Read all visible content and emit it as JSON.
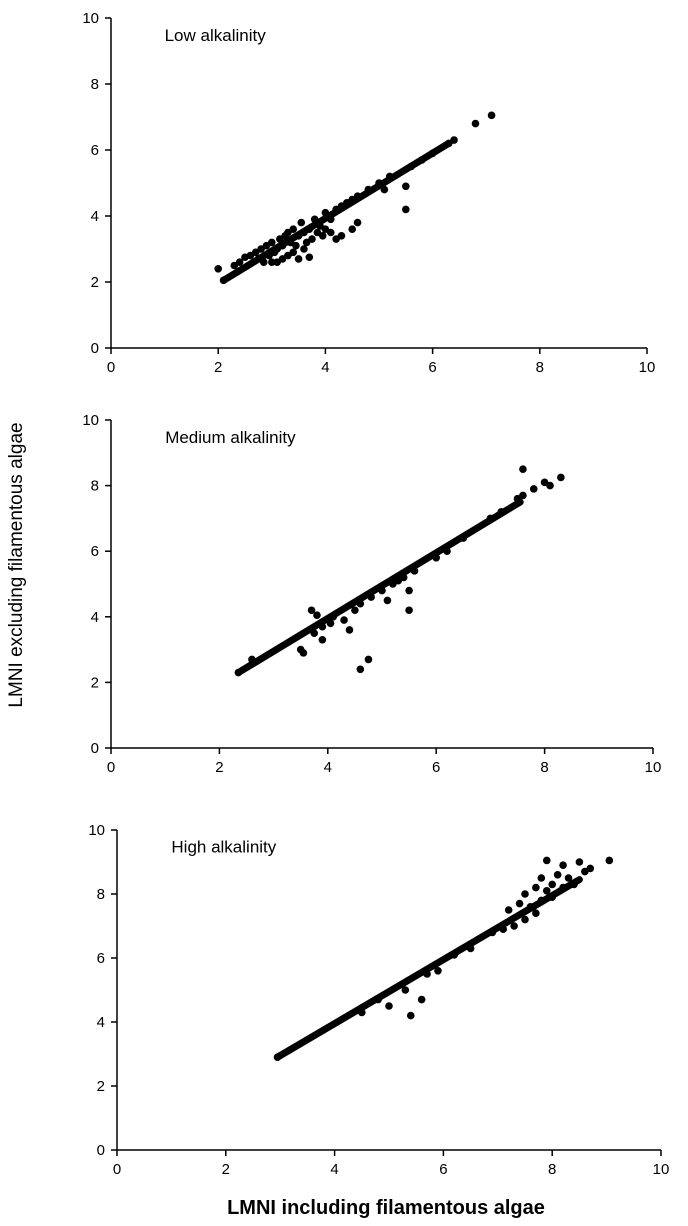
{
  "figure": {
    "xlabel": "LMNI including  filamentous algae",
    "ylabel": "LMNI excluding filamentous algae"
  },
  "chart_data": [
    {
      "type": "scatter",
      "title": "Low alkalinity",
      "xlim": [
        0,
        10
      ],
      "ylim": [
        0,
        10
      ],
      "xticks": [
        0,
        2,
        4,
        6,
        8,
        10
      ],
      "yticks": [
        0,
        2,
        4,
        6,
        8,
        10
      ],
      "grid": false,
      "marker_color": "#000000",
      "line": {
        "from": [
          2.1,
          2.05
        ],
        "to": [
          6.3,
          6.2
        ]
      },
      "points": [
        [
          2.0,
          2.4
        ],
        [
          2.1,
          2.05
        ],
        [
          2.3,
          2.5
        ],
        [
          2.4,
          2.6
        ],
        [
          2.5,
          2.75
        ],
        [
          2.6,
          2.8
        ],
        [
          2.7,
          2.9
        ],
        [
          2.75,
          2.7
        ],
        [
          2.8,
          3.0
        ],
        [
          2.85,
          2.6
        ],
        [
          2.9,
          3.1
        ],
        [
          2.95,
          2.8
        ],
        [
          3.0,
          2.6
        ],
        [
          3.0,
          3.2
        ],
        [
          3.05,
          2.9
        ],
        [
          3.1,
          3.0
        ],
        [
          3.1,
          2.6
        ],
        [
          3.15,
          3.3
        ],
        [
          3.2,
          2.7
        ],
        [
          3.2,
          3.1
        ],
        [
          3.25,
          3.4
        ],
        [
          3.3,
          2.8
        ],
        [
          3.3,
          3.5
        ],
        [
          3.35,
          3.2
        ],
        [
          3.4,
          3.6
        ],
        [
          3.4,
          2.9
        ],
        [
          3.45,
          3.1
        ],
        [
          3.5,
          3.4
        ],
        [
          3.5,
          2.7
        ],
        [
          3.55,
          3.8
        ],
        [
          3.6,
          3.5
        ],
        [
          3.6,
          3.0
        ],
        [
          3.65,
          3.2
        ],
        [
          3.7,
          3.6
        ],
        [
          3.7,
          2.75
        ],
        [
          3.75,
          3.3
        ],
        [
          3.8,
          3.9
        ],
        [
          3.85,
          3.5
        ],
        [
          3.9,
          3.7
        ],
        [
          3.95,
          3.4
        ],
        [
          4.0,
          4.1
        ],
        [
          4.0,
          3.6
        ],
        [
          4.1,
          3.9
        ],
        [
          4.1,
          3.5
        ],
        [
          4.2,
          4.2
        ],
        [
          4.2,
          3.3
        ],
        [
          4.3,
          4.3
        ],
        [
          4.3,
          3.4
        ],
        [
          4.4,
          4.4
        ],
        [
          4.5,
          4.5
        ],
        [
          4.5,
          3.6
        ],
        [
          4.6,
          3.8
        ],
        [
          4.6,
          4.6
        ],
        [
          4.8,
          4.8
        ],
        [
          5.0,
          5.0
        ],
        [
          5.1,
          4.8
        ],
        [
          5.2,
          5.2
        ],
        [
          5.5,
          4.2
        ],
        [
          5.5,
          4.9
        ],
        [
          5.6,
          5.5
        ],
        [
          5.8,
          5.7
        ],
        [
          6.0,
          5.9
        ],
        [
          6.3,
          6.2
        ],
        [
          6.4,
          6.3
        ],
        [
          6.8,
          6.8
        ],
        [
          7.1,
          7.05
        ]
      ]
    },
    {
      "type": "scatter",
      "title": "Medium alkalinity",
      "xlim": [
        0,
        10
      ],
      "ylim": [
        0,
        10
      ],
      "xticks": [
        0,
        2,
        4,
        6,
        8,
        10
      ],
      "yticks": [
        0,
        2,
        4,
        6,
        8,
        10
      ],
      "grid": false,
      "marker_color": "#000000",
      "line": {
        "from": [
          2.35,
          2.3
        ],
        "to": [
          7.55,
          7.5
        ]
      },
      "points": [
        [
          2.35,
          2.3
        ],
        [
          2.6,
          2.7
        ],
        [
          3.5,
          3.0
        ],
        [
          3.55,
          2.9
        ],
        [
          3.7,
          4.2
        ],
        [
          3.8,
          4.05
        ],
        [
          3.75,
          3.5
        ],
        [
          3.9,
          3.3
        ],
        [
          3.9,
          3.7
        ],
        [
          4.05,
          3.8
        ],
        [
          4.1,
          4.0
        ],
        [
          4.3,
          3.9
        ],
        [
          4.4,
          3.6
        ],
        [
          4.5,
          4.2
        ],
        [
          4.6,
          2.4
        ],
        [
          4.75,
          2.7
        ],
        [
          4.6,
          4.4
        ],
        [
          4.8,
          4.6
        ],
        [
          5.0,
          4.8
        ],
        [
          5.1,
          4.5
        ],
        [
          5.2,
          5.0
        ],
        [
          5.3,
          5.1
        ],
        [
          5.4,
          5.2
        ],
        [
          5.5,
          4.2
        ],
        [
          5.5,
          4.8
        ],
        [
          5.6,
          5.4
        ],
        [
          6.0,
          5.8
        ],
        [
          6.2,
          6.0
        ],
        [
          6.5,
          6.4
        ],
        [
          7.0,
          7.0
        ],
        [
          7.2,
          7.2
        ],
        [
          7.5,
          7.6
        ],
        [
          7.6,
          8.5
        ],
        [
          7.6,
          7.7
        ],
        [
          7.8,
          7.9
        ],
        [
          8.0,
          8.1
        ],
        [
          8.1,
          8.0
        ],
        [
          8.3,
          8.25
        ]
      ]
    },
    {
      "type": "scatter",
      "title": "High alkalinity",
      "xlim": [
        0,
        10
      ],
      "ylim": [
        0,
        10
      ],
      "xticks": [
        0,
        2,
        4,
        6,
        8,
        10
      ],
      "yticks": [
        0,
        2,
        4,
        6,
        8,
        10
      ],
      "grid": false,
      "marker_color": "#000000",
      "line": {
        "from": [
          2.95,
          2.9
        ],
        "to": [
          8.5,
          8.45
        ]
      },
      "points": [
        [
          2.95,
          2.9
        ],
        [
          4.5,
          4.3
        ],
        [
          4.8,
          4.7
        ],
        [
          5.0,
          4.5
        ],
        [
          5.3,
          5.0
        ],
        [
          5.4,
          4.2
        ],
        [
          5.6,
          4.7
        ],
        [
          5.7,
          5.5
        ],
        [
          5.9,
          5.6
        ],
        [
          6.2,
          6.1
        ],
        [
          6.5,
          6.3
        ],
        [
          6.9,
          6.8
        ],
        [
          7.1,
          6.9
        ],
        [
          7.2,
          7.5
        ],
        [
          7.3,
          7.0
        ],
        [
          7.4,
          7.7
        ],
        [
          7.5,
          7.2
        ],
        [
          7.5,
          8.0
        ],
        [
          7.6,
          7.6
        ],
        [
          7.7,
          8.2
        ],
        [
          7.7,
          7.4
        ],
        [
          7.8,
          8.5
        ],
        [
          7.8,
          7.8
        ],
        [
          7.9,
          9.05
        ],
        [
          7.9,
          8.1
        ],
        [
          8.0,
          8.3
        ],
        [
          8.0,
          7.9
        ],
        [
          8.1,
          8.6
        ],
        [
          8.2,
          8.9
        ],
        [
          8.2,
          8.2
        ],
        [
          8.3,
          8.5
        ],
        [
          8.4,
          8.3
        ],
        [
          8.5,
          9.0
        ],
        [
          8.6,
          8.7
        ],
        [
          8.7,
          8.8
        ],
        [
          9.05,
          9.05
        ]
      ]
    }
  ]
}
